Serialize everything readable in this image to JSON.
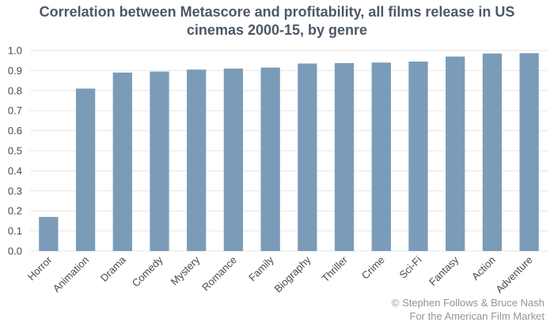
{
  "credit": {
    "line1": "© Stephen Follows & Bruce Nash",
    "line2": "For the American Film Market"
  },
  "chart_data": {
    "type": "bar",
    "title_line1": "Correlation between Metascore and profitability, all films release in US",
    "title_line2": "cinemas 2000-15, by genre",
    "categories": [
      "Horror",
      "Animation",
      "Drama",
      "Comedy",
      "Mystery",
      "Romance",
      "Family",
      "Biography",
      "Thriller",
      "Crime",
      "Sci-Fi",
      "Fantasy",
      "Action",
      "Adventure"
    ],
    "values": [
      0.17,
      0.81,
      0.89,
      0.895,
      0.905,
      0.91,
      0.915,
      0.935,
      0.937,
      0.94,
      0.945,
      0.97,
      0.985,
      0.987
    ],
    "yticks": [
      "0.0",
      "0.1",
      "0.2",
      "0.3",
      "0.4",
      "0.5",
      "0.6",
      "0.7",
      "0.8",
      "0.9",
      "1.0"
    ],
    "ylim": [
      0,
      1.0
    ],
    "xlabel": "",
    "ylabel": "",
    "grid": true,
    "legend": "none",
    "bar_color": "#7a9cb8",
    "grid_color": "#e6e6e6"
  }
}
